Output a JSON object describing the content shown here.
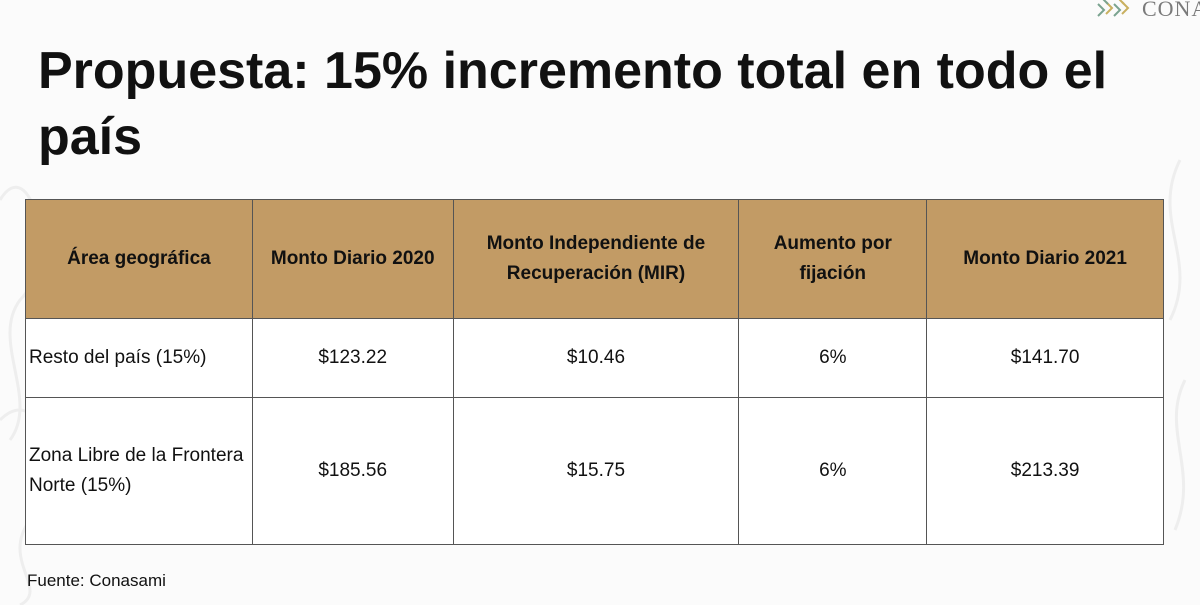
{
  "logo": {
    "text": "CONA"
  },
  "slide": {
    "title": "Propuesta: 15% incremento total en todo el país"
  },
  "table": {
    "headers": [
      "Área geográfica",
      "Monto Diario 2020",
      "Monto Independiente de Recuperación (MIR)",
      "Aumento por fijación",
      "Monto Diario 2021"
    ],
    "rows": [
      [
        "Resto del país (15%)",
        "$123.22",
        "$10.46",
        "6%",
        "$141.70"
      ],
      [
        "Zona Libre de la Frontera Norte (15%)",
        "$185.56",
        "$15.75",
        "6%",
        "$213.39"
      ]
    ]
  },
  "source": "Fuente: Conasami",
  "colors": {
    "header_bg": "#c29b65",
    "border": "#555555",
    "text": "#111111"
  }
}
